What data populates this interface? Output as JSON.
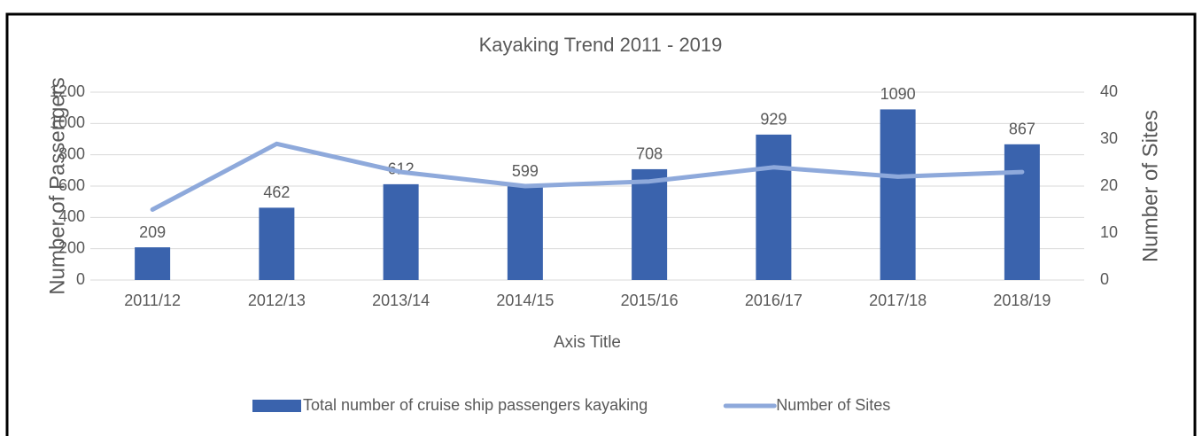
{
  "chart_data": {
    "type": "bar-line",
    "title": "Kayaking Trend 2011 - 2019",
    "x_label": "Axis Title",
    "y_label": "Number of Passengers",
    "y2_label": "Number of Sites",
    "categories": [
      "2011/12",
      "2012/13",
      "2013/14",
      "2014/15",
      "2015/16",
      "2016/17",
      "2017/18",
      "2018/19"
    ],
    "series": [
      {
        "name": "Total number of cruise ship passengers kayaking",
        "type": "bar",
        "color": "#3a63ad",
        "values": [
          209,
          462,
          612,
          599,
          708,
          929,
          1090,
          867
        ]
      },
      {
        "name": "Number of Sites",
        "type": "line",
        "axis": "y2",
        "color": "#8ea9db",
        "values": [
          15,
          29,
          23,
          20,
          21,
          24,
          22,
          23
        ]
      }
    ],
    "ylim": [
      0,
      1200
    ],
    "yticks": [
      0,
      200,
      400,
      600,
      800,
      1000,
      1200
    ],
    "y2lim": [
      0,
      40
    ],
    "y2ticks": [
      0,
      10,
      20,
      30,
      40
    ],
    "grid": true,
    "legend": "bottom",
    "data_labels": true
  }
}
